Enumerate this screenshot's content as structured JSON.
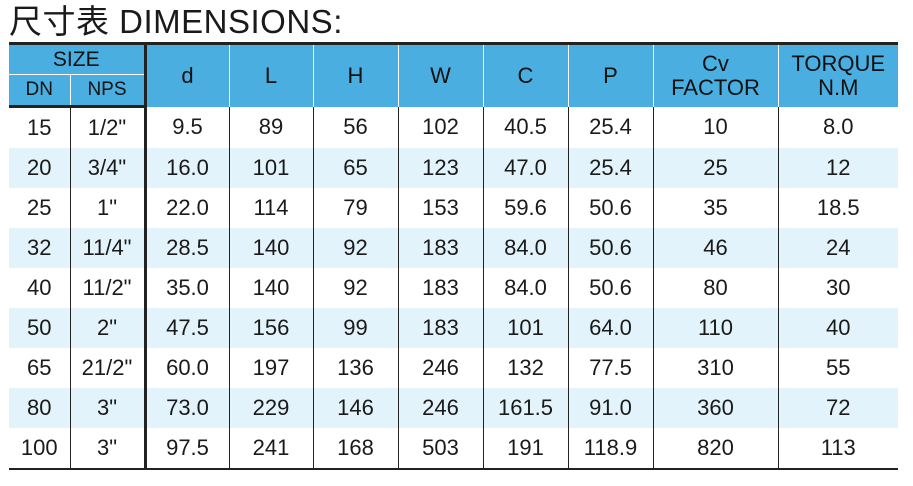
{
  "title": "尺寸表 DIMENSIONS:",
  "header": {
    "size": "SIZE",
    "dn": "DN",
    "nps": "NPS",
    "d": "d",
    "l": "L",
    "h": "H",
    "w": "W",
    "c": "C",
    "p": "P",
    "cv_line1": "Cv",
    "cv_line2": "FACTOR",
    "torque_line1": "TORQUE",
    "torque_line2": "N.M"
  },
  "rows": [
    [
      "15",
      "1/2\"",
      "9.5",
      "89",
      "56",
      "102",
      "40.5",
      "25.4",
      "10",
      "8.0"
    ],
    [
      "20",
      "3/4\"",
      "16.0",
      "101",
      "65",
      "123",
      "47.0",
      "25.4",
      "25",
      "12"
    ],
    [
      "25",
      "1\"",
      "22.0",
      "114",
      "79",
      "153",
      "59.6",
      "50.6",
      "35",
      "18.5"
    ],
    [
      "32",
      "11/4\"",
      "28.5",
      "140",
      "92",
      "183",
      "84.0",
      "50.6",
      "46",
      "24"
    ],
    [
      "40",
      "11/2\"",
      "35.0",
      "140",
      "92",
      "183",
      "84.0",
      "50.6",
      "80",
      "30"
    ],
    [
      "50",
      "2\"",
      "47.5",
      "156",
      "99",
      "183",
      "101",
      "64.0",
      "110",
      "40"
    ],
    [
      "65",
      "21/2\"",
      "60.0",
      "197",
      "136",
      "246",
      "132",
      "77.5",
      "310",
      "55"
    ],
    [
      "80",
      "3\"",
      "73.0",
      "229",
      "146",
      "246",
      "161.5",
      "91.0",
      "360",
      "72"
    ],
    [
      "100",
      "3\"",
      "97.5",
      "241",
      "168",
      "503",
      "191",
      "118.9",
      "820",
      "113"
    ]
  ],
  "colors": {
    "header_bg": "#4aaee0",
    "alt_row_bg": "#e2f3fb",
    "rule": "#222222"
  }
}
